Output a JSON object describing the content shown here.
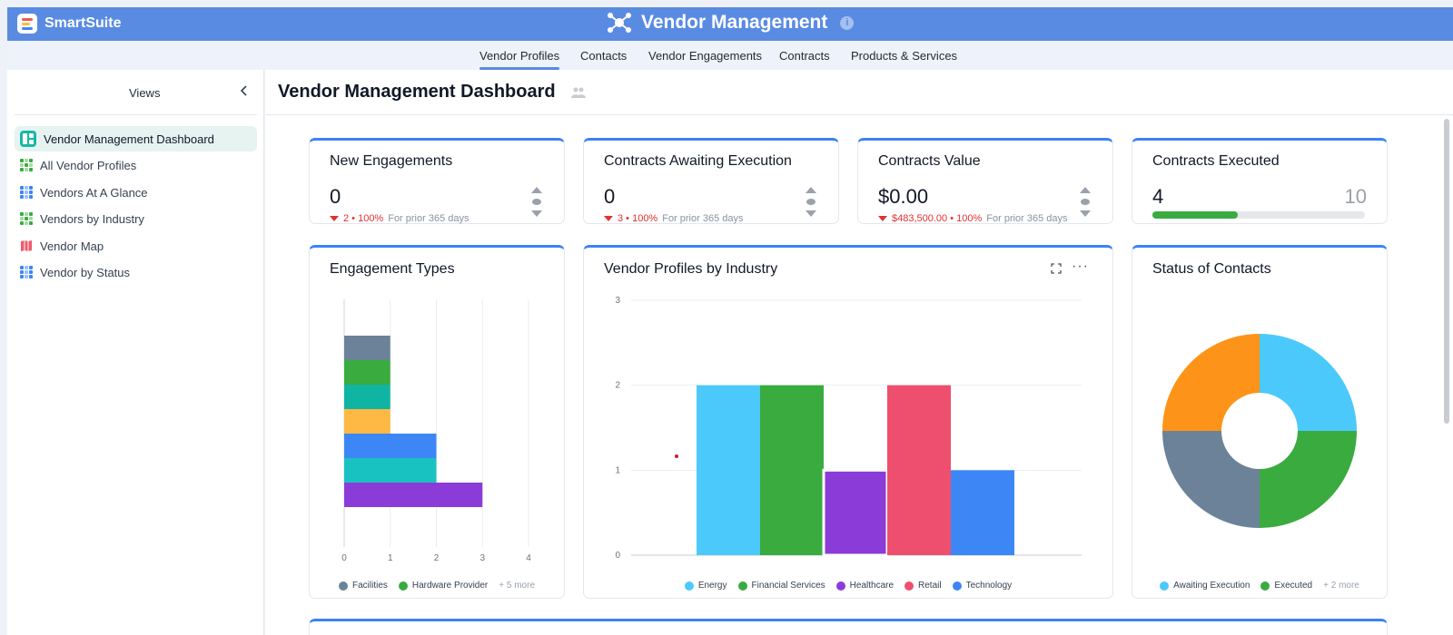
{
  "brand": {
    "name": "SmartSuite"
  },
  "app": {
    "title": "Vendor Management"
  },
  "tabs": [
    {
      "label": "Vendor Profiles",
      "active": true
    },
    {
      "label": "Contacts"
    },
    {
      "label": "Vendor Engagements"
    },
    {
      "label": "Contracts"
    },
    {
      "label": "Products & Services"
    }
  ],
  "sidebar": {
    "title": "Views",
    "items": [
      {
        "label": "Vendor Management Dashboard",
        "icon": "dashboard-icon",
        "active": true
      },
      {
        "label": "All Vendor Profiles",
        "icon": "grid-green-icon"
      },
      {
        "label": "Vendors At A Glance",
        "icon": "grid-blue-icon"
      },
      {
        "label": "Vendors by Industry",
        "icon": "grid-green-icon"
      },
      {
        "label": "Vendor Map",
        "icon": "map-icon"
      },
      {
        "label": "Vendor by Status",
        "icon": "grid-blue-icon"
      }
    ]
  },
  "page": {
    "title": "Vendor Management Dashboard"
  },
  "kpis": [
    {
      "title": "New Engagements",
      "value": "0",
      "delta": "2 • 100%",
      "prior": "For prior 365 days"
    },
    {
      "title": "Contracts Awaiting Execution",
      "value": "0",
      "delta": "3 • 100%",
      "prior": "For prior 365 days"
    },
    {
      "title": "Contracts Value",
      "value": "$0.00",
      "delta": "$483,500.00 • 100%",
      "prior": "For prior 365 days"
    },
    {
      "title": "Contracts Executed",
      "value": "4",
      "target": "10",
      "progress": 0.4
    }
  ],
  "chart_data": [
    {
      "type": "bar",
      "orientation": "horizontal",
      "stacked": true,
      "title": "Engagement Types",
      "x_ticks": [
        "0",
        "1",
        "2",
        "3",
        "4"
      ],
      "xlim": [
        0,
        4
      ],
      "rows": [
        {
          "value": 1,
          "color": "#6b8299"
        },
        {
          "value": 1,
          "color": "#3aab3f"
        },
        {
          "value": 1,
          "color": "#0fb5a2"
        },
        {
          "value": 1,
          "color": "#fdb944"
        },
        {
          "value": 2,
          "color": "#3d86f6"
        },
        {
          "value": 2,
          "color": "#18c2c0"
        },
        {
          "value": 3,
          "color": "#8b3bd8"
        }
      ],
      "legend": [
        {
          "label": "Facilities",
          "color": "#6b8299"
        },
        {
          "label": "Hardware Provider",
          "color": "#3aab3f"
        }
      ],
      "legend_more": "+ 5 more"
    },
    {
      "type": "bar",
      "title": "Vendor Profiles by Industry",
      "categories": [
        "Energy",
        "Financial Services",
        "Healthcare",
        "Retail",
        "Technology"
      ],
      "values": [
        2,
        2,
        1,
        2,
        1
      ],
      "colors": [
        "#4cc9fb",
        "#3aab3f",
        "#8b3bd8",
        "#ef4f6e",
        "#3d86f6"
      ],
      "y_ticks": [
        "0",
        "1",
        "2",
        "3"
      ],
      "ylim": [
        0,
        3
      ],
      "grid": true,
      "legend_position": "bottom"
    },
    {
      "type": "pie",
      "donut": true,
      "title": "Status of Contacts",
      "slices": [
        {
          "value": 1,
          "color": "#4cc9fb"
        },
        {
          "value": 1,
          "color": "#3aab3f"
        },
        {
          "value": 1,
          "color": "#6b8299"
        },
        {
          "value": 1,
          "color": "#fd9419"
        }
      ],
      "legend": [
        {
          "label": "Awaiting Execution",
          "color": "#4cc9fb"
        },
        {
          "label": "Executed",
          "color": "#3aab3f"
        }
      ],
      "legend_more": "+ 2 more"
    }
  ]
}
